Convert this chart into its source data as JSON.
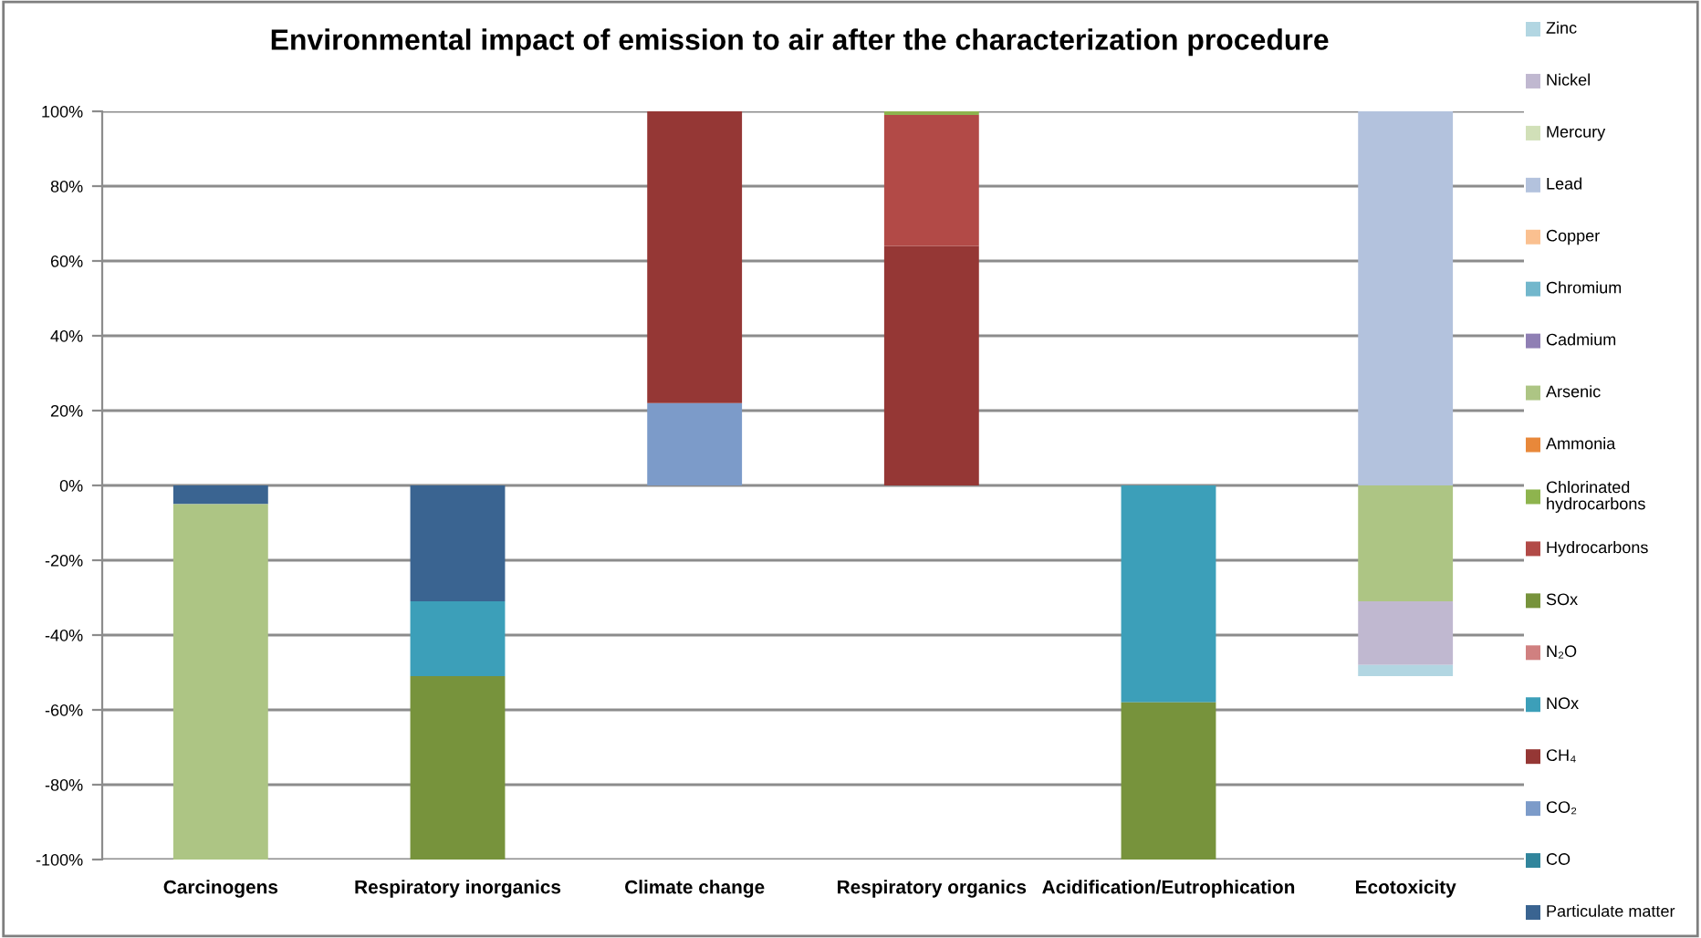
{
  "chart_data": {
    "type": "bar",
    "title": "Environmental impact of emission to air after the characterization procedure",
    "categories": [
      "Carcinogens",
      "Respiratory inorganics",
      "Climate change",
      "Respiratory organics",
      "Acidification/Eutrophication",
      "Ecotoxicity"
    ],
    "stacked": true,
    "series": [
      {
        "name": "Particulate matter",
        "color": "#3a6491",
        "values": [
          -5,
          -31,
          null,
          null,
          null,
          null
        ]
      },
      {
        "name": "CO",
        "color": "#31859c",
        "values": [
          null,
          null,
          null,
          null,
          null,
          null
        ]
      },
      {
        "name": "CO₂",
        "color": "#7c9bc9",
        "values": [
          null,
          null,
          22,
          null,
          null,
          null
        ]
      },
      {
        "name": "CH₄",
        "color": "#953735",
        "values": [
          null,
          null,
          78,
          64,
          null,
          null
        ]
      },
      {
        "name": "NOx",
        "color": "#3c9fb9",
        "values": [
          null,
          -20,
          null,
          null,
          -58,
          null
        ]
      },
      {
        "name": "N₂O",
        "color": "#d08080",
        "values": [
          null,
          null,
          null,
          null,
          null,
          null
        ]
      },
      {
        "name": "SOx",
        "color": "#77933c",
        "values": [
          null,
          -49,
          null,
          null,
          -42,
          null
        ]
      },
      {
        "name": "Hydrocarbons",
        "color": "#b24a47",
        "values": [
          null,
          null,
          null,
          35,
          null,
          null
        ]
      },
      {
        "name": "Chlorinated hydrocarbons",
        "color": "#8eb44e",
        "values": [
          null,
          null,
          null,
          1,
          null,
          null
        ]
      },
      {
        "name": "Ammonia",
        "color": "#e8883a",
        "values": [
          null,
          null,
          null,
          null,
          null,
          null
        ]
      },
      {
        "name": "Arsenic",
        "color": "#adc584",
        "values": [
          -95,
          null,
          null,
          null,
          null,
          -31
        ]
      },
      {
        "name": "Cadmium",
        "color": "#8f7fb4",
        "values": [
          null,
          null,
          null,
          null,
          null,
          null
        ]
      },
      {
        "name": "Chromium",
        "color": "#72b7cc",
        "values": [
          null,
          null,
          null,
          null,
          null,
          null
        ]
      },
      {
        "name": "Copper",
        "color": "#fac090",
        "values": [
          null,
          null,
          null,
          null,
          null,
          null
        ]
      },
      {
        "name": "Lead",
        "color": "#b3c2dd",
        "values": [
          null,
          null,
          null,
          null,
          null,
          100
        ]
      },
      {
        "name": "Mercury",
        "color": "#d1e0b8",
        "values": [
          null,
          null,
          null,
          null,
          null,
          null
        ]
      },
      {
        "name": "Nickel",
        "color": "#c0b8d0",
        "values": [
          null,
          null,
          null,
          null,
          null,
          -17
        ]
      },
      {
        "name": "Zinc",
        "color": "#b2d6e2",
        "values": [
          null,
          null,
          null,
          null,
          null,
          -3
        ]
      }
    ],
    "ylim": [
      -100,
      100
    ],
    "yticks": [
      {
        "value": -100,
        "label": "-100%"
      },
      {
        "value": -80,
        "label": "-80%"
      },
      {
        "value": -60,
        "label": "-60%"
      },
      {
        "value": -40,
        "label": "-40%"
      },
      {
        "value": -20,
        "label": "-20%"
      },
      {
        "value": 0,
        "label": "0%"
      },
      {
        "value": 20,
        "label": "20%"
      },
      {
        "value": 40,
        "label": "40%"
      },
      {
        "value": 60,
        "label": "60%"
      },
      {
        "value": 80,
        "label": "80%"
      },
      {
        "value": 100,
        "label": "100%"
      }
    ],
    "grid": "y",
    "legend": "right"
  }
}
